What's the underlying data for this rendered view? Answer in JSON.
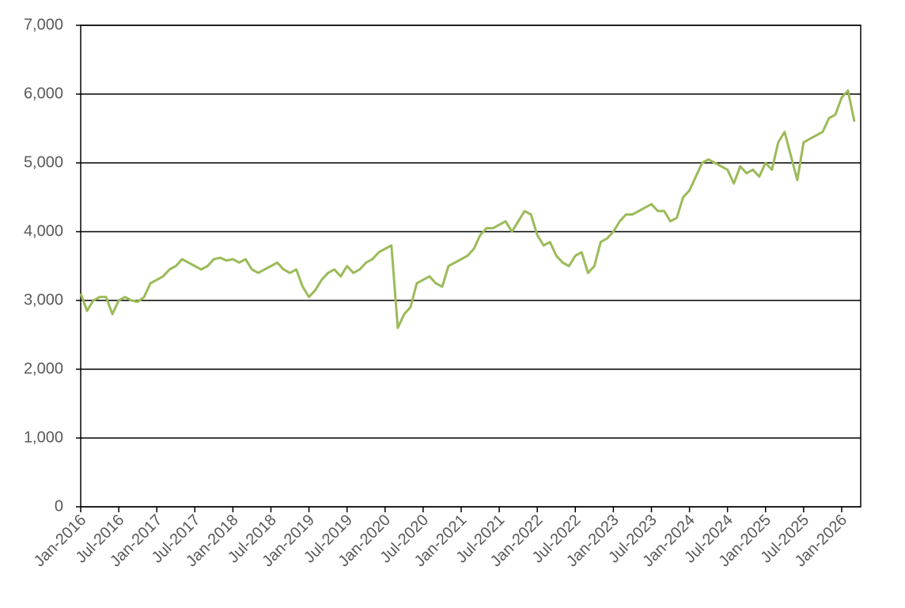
{
  "chart_data": {
    "type": "line",
    "x": [
      "2016-01",
      "2016-02",
      "2016-03",
      "2016-04",
      "2016-05",
      "2016-06",
      "2016-07",
      "2016-08",
      "2016-09",
      "2016-10",
      "2016-11",
      "2016-12",
      "2017-01",
      "2017-02",
      "2017-03",
      "2017-04",
      "2017-05",
      "2017-06",
      "2017-07",
      "2017-08",
      "2017-09",
      "2017-10",
      "2017-11",
      "2017-12",
      "2018-01",
      "2018-02",
      "2018-03",
      "2018-04",
      "2018-05",
      "2018-06",
      "2018-07",
      "2018-08",
      "2018-09",
      "2018-10",
      "2018-11",
      "2018-12",
      "2019-01",
      "2019-02",
      "2019-03",
      "2019-04",
      "2019-05",
      "2019-06",
      "2019-07",
      "2019-08",
      "2019-09",
      "2019-10",
      "2019-11",
      "2019-12",
      "2020-01",
      "2020-02",
      "2020-03",
      "2020-04",
      "2020-05",
      "2020-06",
      "2020-07",
      "2020-08",
      "2020-09",
      "2020-10",
      "2020-11",
      "2020-12",
      "2021-01",
      "2021-02",
      "2021-03",
      "2021-04",
      "2021-05",
      "2021-06",
      "2021-07",
      "2021-08",
      "2021-09",
      "2021-10",
      "2021-11",
      "2021-12",
      "2022-01",
      "2022-02",
      "2022-03",
      "2022-04",
      "2022-05",
      "2022-06",
      "2022-07",
      "2022-08",
      "2022-09",
      "2022-10",
      "2022-11",
      "2022-12",
      "2023-01",
      "2023-02",
      "2023-03",
      "2023-04",
      "2023-05",
      "2023-06",
      "2023-07",
      "2023-08",
      "2023-09",
      "2023-10",
      "2023-11",
      "2023-12",
      "2024-01",
      "2024-02",
      "2024-03",
      "2024-04",
      "2024-05",
      "2024-06",
      "2024-07",
      "2024-08",
      "2024-09",
      "2024-10",
      "2024-11",
      "2024-12",
      "2025-01",
      "2025-02",
      "2025-03",
      "2025-04",
      "2025-05",
      "2025-06",
      "2025-07",
      "2025-08",
      "2025-09",
      "2025-10",
      "2025-11",
      "2025-12",
      "2026-01",
      "2026-02",
      "2026-03"
    ],
    "series": [
      {
        "color": "#9bbb59",
        "values": [
          3100,
          2850,
          3000,
          3050,
          3050,
          2800,
          3000,
          3050,
          3000,
          2980,
          3050,
          3250,
          3300,
          3350,
          3450,
          3500,
          3600,
          3550,
          3500,
          3450,
          3500,
          3600,
          3620,
          3580,
          3600,
          3550,
          3600,
          3450,
          3400,
          3450,
          3500,
          3550,
          3450,
          3400,
          3450,
          3200,
          3050,
          3150,
          3300,
          3400,
          3450,
          3350,
          3500,
          3400,
          3450,
          3550,
          3600,
          3700,
          3750,
          3800,
          2600,
          2800,
          2900,
          3250,
          3300,
          3350,
          3250,
          3200,
          3500,
          3550,
          3600,
          3650,
          3750,
          3950,
          4050,
          4050,
          4100,
          4150,
          4000,
          4150,
          4300,
          4250,
          3950,
          3800,
          3850,
          3650,
          3550,
          3500,
          3650,
          3700,
          3400,
          3500,
          3850,
          3900,
          4000,
          4150,
          4250,
          4250,
          4300,
          4350,
          4400,
          4300,
          4300,
          4150,
          4200,
          4500,
          4600,
          4800,
          5000,
          5050,
          5000,
          4950,
          4900,
          4700,
          4950,
          4850,
          4900,
          4800,
          5000,
          4900,
          5300,
          5450,
          5100,
          4750,
          5300,
          5350,
          5400,
          5450,
          5650,
          5700,
          5950,
          6050,
          5600
        ]
      }
    ],
    "xlim": [
      "2016-01",
      "2026-04"
    ],
    "xticks": [
      {
        "value": "2016-01",
        "label": "Jan-2016"
      },
      {
        "value": "2016-07",
        "label": "Jul-2016"
      },
      {
        "value": "2017-01",
        "label": "Jan-2017"
      },
      {
        "value": "2017-07",
        "label": "Jul-2017"
      },
      {
        "value": "2018-01",
        "label": "Jan-2018"
      },
      {
        "value": "2018-07",
        "label": "Jul-2018"
      },
      {
        "value": "2019-01",
        "label": "Jan-2019"
      },
      {
        "value": "2019-07",
        "label": "Jul-2019"
      },
      {
        "value": "2020-01",
        "label": "Jan-2020"
      },
      {
        "value": "2020-07",
        "label": "Jul-2020"
      },
      {
        "value": "2021-01",
        "label": "Jan-2021"
      },
      {
        "value": "2021-07",
        "label": "Jul-2021"
      },
      {
        "value": "2022-01",
        "label": "Jan-2022"
      },
      {
        "value": "2022-07",
        "label": "Jul-2022"
      },
      {
        "value": "2023-01",
        "label": "Jan-2023"
      },
      {
        "value": "2023-07",
        "label": "Jul-2023"
      },
      {
        "value": "2024-01",
        "label": "Jan-2024"
      },
      {
        "value": "2024-07",
        "label": "Jul-2024"
      },
      {
        "value": "2025-01",
        "label": "Jan-2025"
      },
      {
        "value": "2025-07",
        "label": "Jul-2025"
      },
      {
        "value": "2026-01",
        "label": "Jan-2026"
      }
    ],
    "ylim": [
      0,
      7000
    ],
    "yticks": [
      0,
      {
        "value": 1000,
        "label": "1,000"
      },
      {
        "value": 2000,
        "label": "2,000"
      },
      {
        "value": 3000,
        "label": "3,000"
      },
      {
        "value": 4000,
        "label": "4,000"
      },
      {
        "value": 5000,
        "label": "5,000"
      },
      {
        "value": 6000,
        "label": "6,000"
      },
      {
        "value": 7000,
        "label": "7,000"
      }
    ],
    "grid": true
  }
}
